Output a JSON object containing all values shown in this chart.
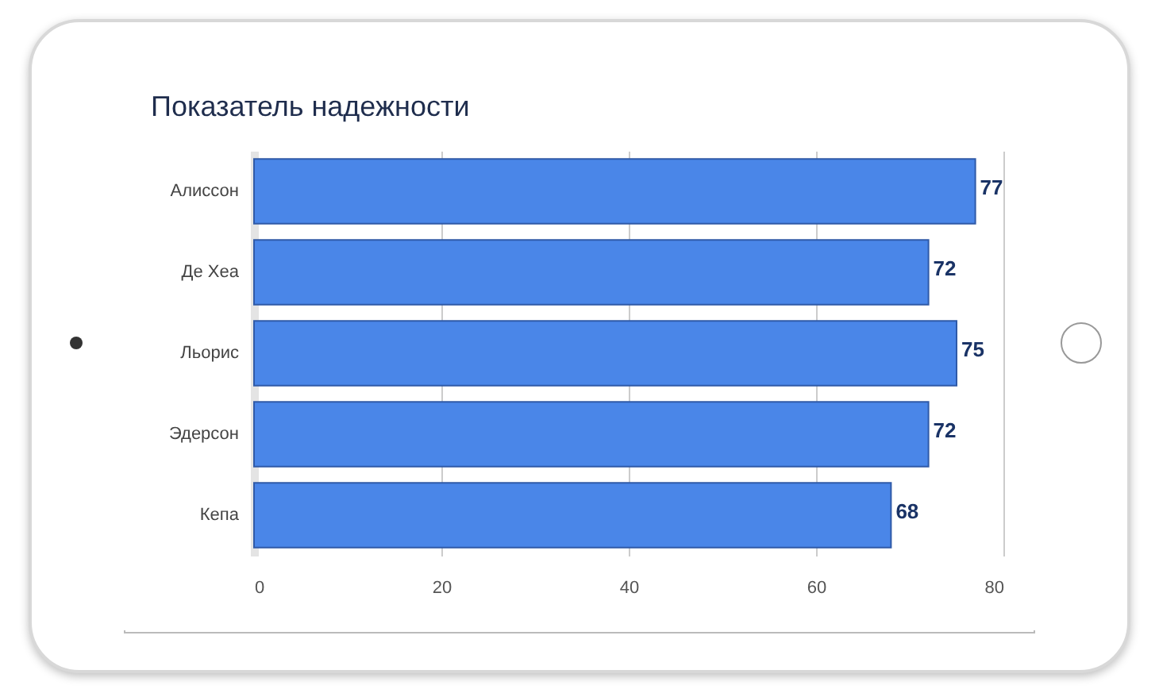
{
  "chart_data": {
    "type": "bar",
    "orientation": "horizontal",
    "title": "Показатель надежности",
    "categories": [
      "Алиссон",
      "Де Хеа",
      "Льорис",
      "Эдерсон",
      "Кепа"
    ],
    "values": [
      77,
      72,
      75,
      72,
      68
    ],
    "color": "#4a86e8",
    "xlim": [
      0,
      80
    ],
    "xticks": [
      0,
      20,
      40,
      60,
      80
    ],
    "grid": "x",
    "data_labels": true
  }
}
